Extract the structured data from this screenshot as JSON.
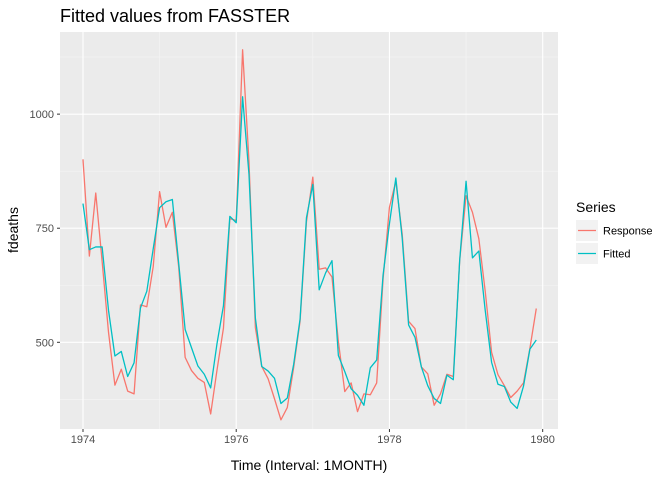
{
  "chart_data": {
    "type": "line",
    "title": "Fitted values from FASSTER",
    "xlabel": "Time (Interval: 1MONTH)",
    "ylabel": "fdeaths",
    "xlim": [
      1973.7,
      1980.2
    ],
    "ylim": [
      310,
      1180
    ],
    "x_ticks": [
      {
        "value": 1974,
        "label": "1974"
      },
      {
        "value": 1976,
        "label": "1976"
      },
      {
        "value": 1978,
        "label": "1978"
      },
      {
        "value": 1980,
        "label": "1980"
      }
    ],
    "y_ticks": [
      {
        "value": 500,
        "label": "500"
      },
      {
        "value": 750,
        "label": "750"
      },
      {
        "value": 1000,
        "label": "1000"
      }
    ],
    "grid": true,
    "legend": {
      "title": "Series",
      "position": "right"
    },
    "x_start": 1974,
    "x_step": 0.083333,
    "series": [
      {
        "name": "Response",
        "color": "#F8766D",
        "values": [
          901,
          689,
          827,
          677,
          522,
          406,
          441,
          393,
          387,
          582,
          578,
          666,
          830,
          752,
          785,
          664,
          467,
          438,
          421,
          412,
          343,
          440,
          531,
          771,
          767,
          1141,
          896,
          532,
          447,
          420,
          376,
          330,
          357,
          445,
          546,
          764,
          862,
          660,
          663,
          643,
          502,
          392,
          411,
          348,
          387,
          385,
          411,
          638,
          796,
          853,
          737,
          546,
          530,
          446,
          431,
          362,
          387,
          430,
          425,
          679,
          821,
          785,
          727,
          612,
          478,
          429,
          405,
          379,
          393,
          411,
          487,
          574
        ]
      },
      {
        "name": "Fitted",
        "color": "#00BFC4",
        "values": [
          804,
          703,
          709,
          709,
          570,
          470,
          480,
          425,
          455,
          575,
          612,
          705,
          795,
          808,
          813,
          672,
          528,
          488,
          448,
          430,
          400,
          498,
          580,
          776,
          762,
          1038,
          868,
          553,
          447,
          437,
          421,
          366,
          378,
          452,
          551,
          773,
          846,
          615,
          652,
          679,
          471,
          436,
          398,
          384,
          362,
          444,
          461,
          647,
          760,
          860,
          728,
          538,
          511,
          446,
          405,
          377,
          366,
          428,
          418,
          680,
          853,
          685,
          700,
          570,
          456,
          408,
          403,
          369,
          355,
          404,
          485,
          505
        ]
      }
    ]
  }
}
